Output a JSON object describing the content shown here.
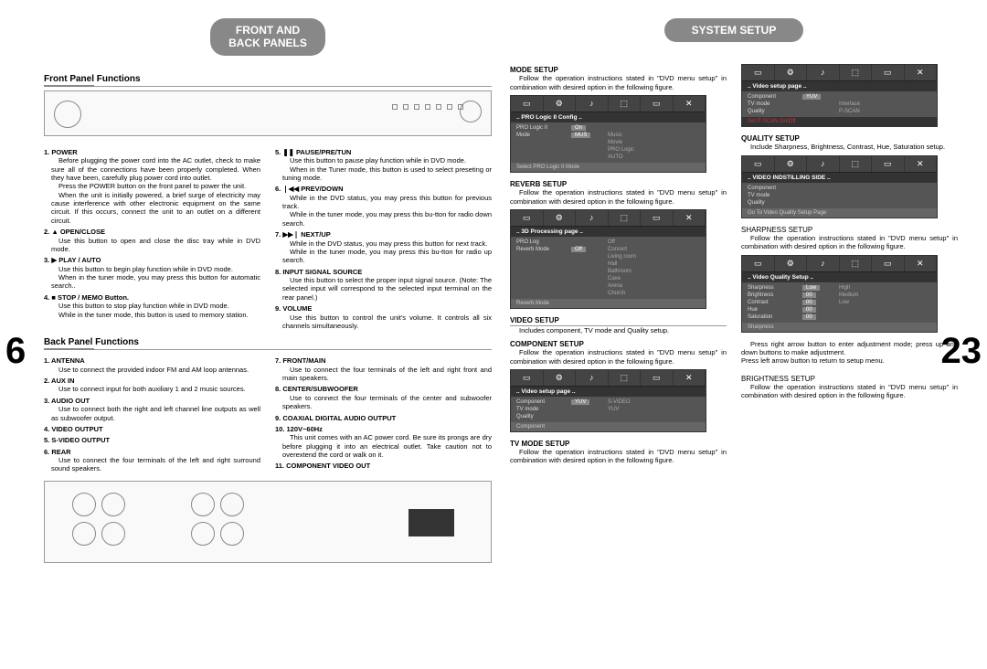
{
  "pageLeft": "6",
  "pageRight": "23",
  "leftHeader": "FRONT AND\nBACK PANELS",
  "rightHeader": "SYSTEM SETUP",
  "frontTitle": "Front Panel Functions",
  "backTitle": "Back Panel Functions",
  "front": {
    "col1": [
      {
        "t": "1. POWER",
        "b": "Before plugging the power cord into the AC outlet, check to make sure all of the connections have been properly completed. When they have been, carefully plug power cord into outlet.\nPress the POWER button on the front panel to power the unit.\nWhen the unit is initially powered, a brief surge of electricity may cause interference with other electronic equipment on the same circuit. If this occurs, connect the unit to an outlet on a different circuit."
      },
      {
        "t": "2. ▲ OPEN/CLOSE",
        "b": "Use this button to open and close the disc tray while in DVD mode."
      },
      {
        "t": "3. ▶ PLAY / AUTO",
        "b": "Use this button to begin play function while in DVD mode.\nWhen in the tuner mode, you may press this button for automatic search.."
      },
      {
        "t": "4. ■ STOP / MEMO Button.",
        "b": "Use this button to stop play function while in DVD mode.\nWhile in the tuner mode, this button is used to memory station."
      }
    ],
    "col2": [
      {
        "t": "5. ❚❚ PAUSE/PRE/TUN",
        "b": "Use this button to pause play function while in DVD mode.\nWhen in the Tuner mode, this button is used to select preseting or tuning mode."
      },
      {
        "t": "6. ❘◀◀ PREV/DOWN",
        "b": "While in the DVD status, you may press this button for previous track.\nWhile in the tuner mode, you may press this bu-tton for radio down search."
      },
      {
        "t": "7. ▶▶❘ NEXT/UP",
        "b": "While in the DVD status, you may press this button for next track.\nWhile in the tuner mode, you may press this bu-tton for radio up search."
      },
      {
        "t": "8. INPUT SIGNAL SOURCE",
        "b": "Use this button to select the proper input signal source. (Note: The selected input will correspond to the selected input terminal on the rear panel.)"
      },
      {
        "t": "9. VOLUME",
        "b": "Use this button to control the unit's volume. It controls all six channels simultaneously."
      }
    ]
  },
  "back": {
    "col1": [
      {
        "t": "1. ANTENNA",
        "b": "Use to connect the provided indoor FM and AM loop antennas."
      },
      {
        "t": "2. AUX IN",
        "b": "Use to connect input for both auxiliary 1 and 2 music sources."
      },
      {
        "t": "3. AUDIO OUT",
        "b": "Use to connect both the right and left channel line outputs as well as subwoofer output."
      },
      {
        "t": "4. VIDEO OUTPUT",
        "b": ""
      },
      {
        "t": "5. S-VIDEO OUTPUT",
        "b": ""
      },
      {
        "t": "6. REAR",
        "b": "Use to connect the four terminals of the left and right surround sound speakers."
      }
    ],
    "col2": [
      {
        "t": "7. FRONT/MAIN",
        "b": "Use to connect the four terminals of the left and right front and main speakers."
      },
      {
        "t": "8. CENTER/SUBWOOFER",
        "b": "Use to connect the four terminals of the center and subwoofer speakers."
      },
      {
        "t": "9. COAXIAL DIGITAL AUDIO OUTPUT",
        "b": ""
      },
      {
        "t": "10. 120V~60Hz",
        "b": "This unit comes with an AC power cord. Be sure its prongs are dry before plugging it into an electrical outlet. Take caution not to overextend the cord or walk on it."
      },
      {
        "t": "11. COMPONENT VIDEO OUT",
        "b": ""
      }
    ]
  },
  "right": {
    "mode": {
      "title": "MODE SETUP",
      "text": "Follow the operation instructions stated in \"DVD menu setup\" in combination with desired option in the following figure.",
      "menu": {
        "header": ".. PRO Logic II Config ..",
        "rows": [
          {
            "k": "PRO Logic II",
            "v": "On",
            "opt": ""
          },
          {
            "k": "Mode",
            "v": "MUS",
            "opt": "Music"
          },
          {
            "k": "",
            "v": "",
            "opt": "Movie"
          },
          {
            "k": "",
            "v": "",
            "opt": "PRO Logic"
          },
          {
            "k": "",
            "v": "",
            "opt": "AUTO"
          }
        ],
        "footer": "Select PRO Logic II Mode"
      }
    },
    "reverb": {
      "title": "REVERB SETUP",
      "text": "Follow the operation instructions stated in \"DVD menu setup\" in combination with desired option in the following figure.",
      "menu": {
        "header": ".. 3D Processing page ..",
        "rows": [
          {
            "k": "PRO Log",
            "v": "",
            "opt": "Off"
          },
          {
            "k": "Reverb Mode",
            "v": "Off",
            "opt": "Concert"
          },
          {
            "k": "",
            "v": "",
            "opt": "Living room"
          },
          {
            "k": "",
            "v": "",
            "opt": "Hall"
          },
          {
            "k": "",
            "v": "",
            "opt": "Bathroom"
          },
          {
            "k": "",
            "v": "",
            "opt": "Cave"
          },
          {
            "k": "",
            "v": "",
            "opt": "Arena"
          },
          {
            "k": "",
            "v": "",
            "opt": "Church"
          }
        ],
        "footer": "Reverb Mode"
      }
    },
    "video": {
      "title": "VIDEO SETUP",
      "text": "Includes component, TV mode and Quality setup."
    },
    "component": {
      "title": "COMPONENT SETUP",
      "text": "Follow the operation instructions stated in \"DVD menu setup\" in combination with desired option in the following figure.",
      "menu": {
        "header": ".. Video setup page ..",
        "rows": [
          {
            "k": "Component",
            "v": "YUV",
            "opt": "S-VIDEO"
          },
          {
            "k": "TV mode",
            "v": "",
            "opt": "YUV"
          },
          {
            "k": "Quality",
            "v": "",
            "opt": ""
          }
        ],
        "footer": "Component"
      }
    },
    "tvmode": {
      "title": "TV MODE SETUP",
      "text": "Follow the operation instructions stated in \"DVD menu setup\" in combination with desired option in the following figure."
    },
    "videoSetupMenu": {
      "header": ".. Video setup page ..",
      "rows": [
        {
          "k": "Component",
          "v": "YUV",
          "opt": ""
        },
        {
          "k": "TV mode",
          "v": "",
          "opt": "Interlace"
        },
        {
          "k": "Quality",
          "v": "",
          "opt": "P-SCAN"
        }
      ],
      "footer": "Set P-SCAN On/Off",
      "footerClass": "red"
    },
    "quality": {
      "title": "QUALITY SETUP",
      "text": "Include Sharpness, Brightness, Contrast, Hue, Saturation setup.",
      "menu": {
        "header": ".. VIDEO INDSTILLING SIDE ..",
        "rows": [
          {
            "k": "Component",
            "v": "",
            "opt": ""
          },
          {
            "k": "TV mode",
            "v": "",
            "opt": ""
          },
          {
            "k": "Quality",
            "v": "",
            "opt": ""
          }
        ],
        "footer": "Go To Video Quality Setup Page"
      }
    },
    "sharpness": {
      "title": "SHARPNESS SETUP",
      "text": "Follow the operation instructions stated in \"DVD menu setup\" in combination with desired option in the following figure.",
      "menu": {
        "header": ".. Video Quality Setup ..",
        "rows": [
          {
            "k": "Sharpness",
            "v": "Low",
            "opt": "High"
          },
          {
            "k": "Brightness",
            "v": "00",
            "opt": "Medium"
          },
          {
            "k": "Contrast",
            "v": "00",
            "opt": "Low"
          },
          {
            "k": "Hue",
            "v": "00",
            "opt": ""
          },
          {
            "k": "Saturation",
            "v": "00",
            "opt": ""
          }
        ],
        "footer": "Sharpness"
      },
      "after": "Press right arrow button to enter adjustment mode; press up and down buttons to make adjustment.\nPress left arrow button to return to setup menu."
    },
    "brightness": {
      "title": "BRIGHTNESS SETUP",
      "text": "Follow the operation instructions stated in \"DVD menu setup\" in combination with desired option in the following figure."
    }
  },
  "tabs": [
    "▭",
    "⚙",
    "♪",
    "⬚",
    "▭",
    "✕"
  ]
}
